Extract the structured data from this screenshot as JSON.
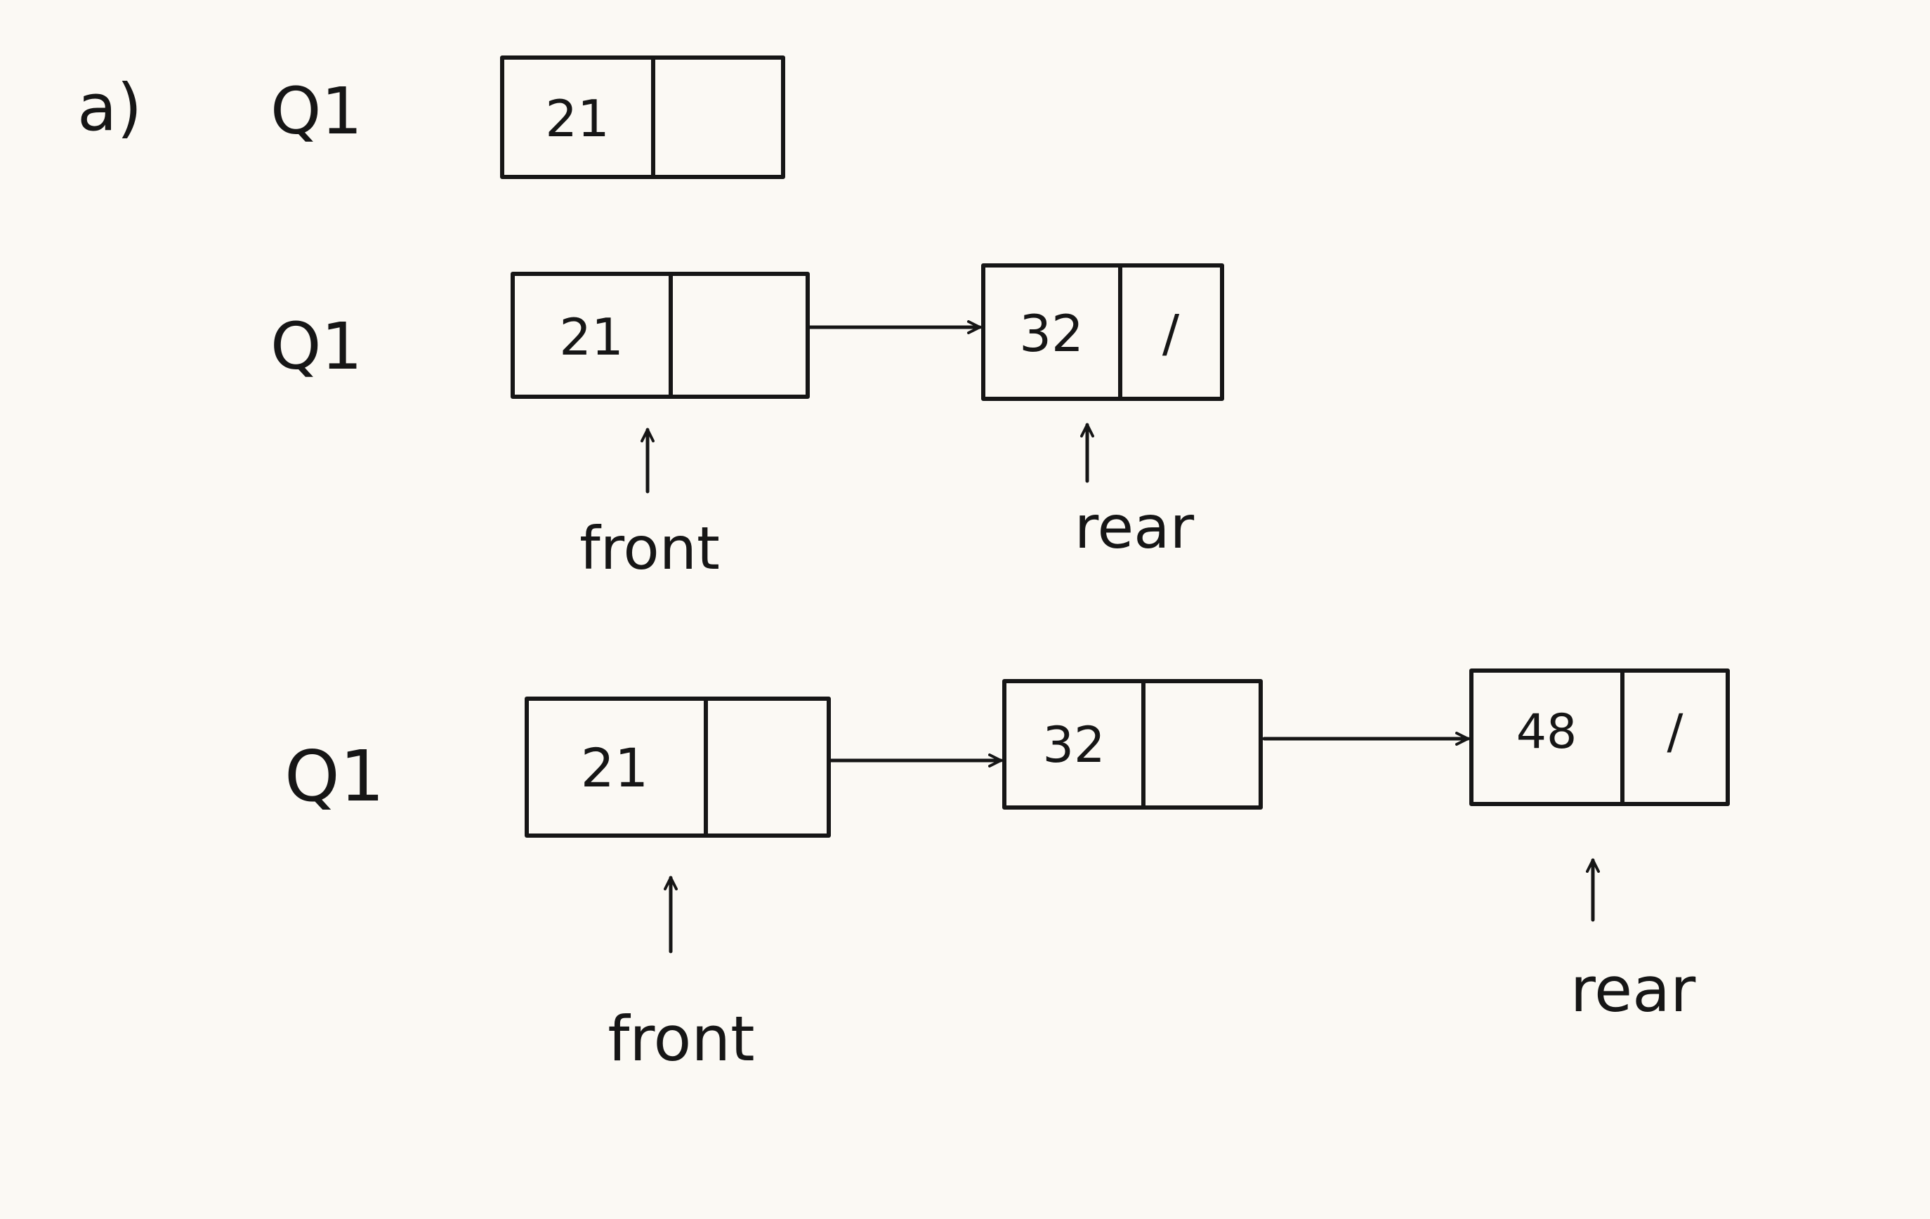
{
  "part_label": "a)",
  "queue_name": "Q1",
  "colors": {
    "ink": "#161616",
    "paper": "#fbf9f4"
  },
  "snapshots": [
    {
      "nodes": [
        {
          "value": "21",
          "next": ""
        }
      ],
      "front_label": "",
      "rear_label": ""
    },
    {
      "nodes": [
        {
          "value": "21",
          "next": ""
        },
        {
          "value": "32",
          "next": "/"
        }
      ],
      "front_label": "front",
      "rear_label": "rear"
    },
    {
      "nodes": [
        {
          "value": "21",
          "next": ""
        },
        {
          "value": "32",
          "next": ""
        },
        {
          "value": "48",
          "next": "/"
        }
      ],
      "front_label": "front",
      "rear_label": "rear"
    }
  ]
}
